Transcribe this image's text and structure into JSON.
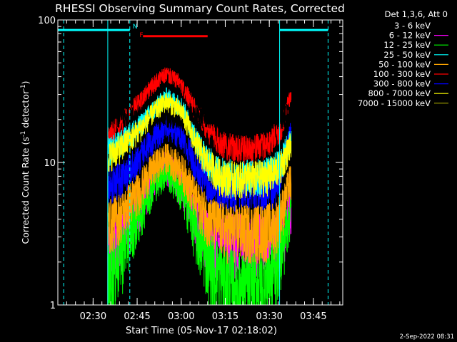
{
  "chart_data": {
    "type": "line",
    "title": "RHESSI Observing Summary Count Rates, Corrected",
    "xlabel": "Start Time (05-Nov-17 02:18:02)",
    "ylabel_main": "Corrected Count Rate (s",
    "ylabel_sup1": "-1",
    "ylabel_mid": " detector",
    "ylabel_sup2": "-1",
    "ylabel_end": ")",
    "yscale": "log",
    "ylim": [
      1,
      100
    ],
    "x_unit": "minutes after 02:18:02",
    "xlim": [
      0,
      97
    ],
    "y_tick_labels": [
      "1",
      "10",
      "100"
    ],
    "y_ticks": [
      1,
      10,
      100
    ],
    "x_ticks": [
      {
        "label": "02:30",
        "min": 12
      },
      {
        "label": "02:45",
        "min": 27
      },
      {
        "label": "03:00",
        "min": 42
      },
      {
        "label": "03:15",
        "min": 57
      },
      {
        "label": "03:30",
        "min": 72
      },
      {
        "label": "03:45",
        "min": 87
      }
    ],
    "data_start_min": 17,
    "data_end_min": 79.5,
    "legend_title": "Det 1,3,6, Att 0",
    "legend_placement": "right",
    "series": [
      {
        "name": "3 - 6 keV",
        "color": "#000000",
        "x": [
          17,
          25,
          32,
          38,
          45,
          52,
          60,
          66,
          72,
          77,
          79
        ],
        "values": [
          21,
          21,
          21,
          21,
          21,
          21,
          21,
          21,
          21,
          21,
          23
        ]
      },
      {
        "name": "6 - 12 keV",
        "color": "#ff00ff",
        "x": [
          17,
          22,
          28,
          33,
          37,
          42,
          47,
          52,
          58,
          64,
          70,
          74,
          77,
          79
        ],
        "values": [
          2.3,
          3.3,
          5,
          8,
          9.5,
          7,
          4,
          3,
          3,
          3,
          3,
          3,
          3.5,
          4.5
        ]
      },
      {
        "name": "12 - 25 keV",
        "color": "#00ff00",
        "x": [
          17,
          22,
          28,
          33,
          37,
          42,
          47,
          52,
          58,
          64,
          70,
          74,
          77,
          79
        ],
        "values": [
          1.5,
          2.5,
          4.5,
          7.5,
          9,
          6.5,
          3.3,
          2,
          1.5,
          1.3,
          1.5,
          2,
          3,
          4.5
        ]
      },
      {
        "name": "25 - 50 keV",
        "color": "#00ffff",
        "x": [
          17,
          22,
          28,
          33,
          37,
          42,
          46,
          50,
          55,
          60,
          66,
          72,
          76,
          79
        ],
        "values": [
          12,
          14,
          18,
          24,
          29,
          25,
          16,
          11,
          8.5,
          8,
          8,
          8.5,
          10,
          14
        ]
      },
      {
        "name": "50 - 100 keV",
        "color": "#ffa500",
        "x": [
          17,
          22,
          28,
          33,
          37,
          42,
          47,
          52,
          58,
          64,
          70,
          74,
          77,
          79
        ],
        "values": [
          3.8,
          4.5,
          6.5,
          9.5,
          11,
          9,
          5.5,
          4,
          3.5,
          3.5,
          3.5,
          3.7,
          5,
          7.5
        ]
      },
      {
        "name": "100 - 300 keV",
        "color": "#ff0000",
        "x": [
          17,
          22,
          28,
          33,
          37,
          41,
          46,
          51,
          56,
          61,
          66,
          71,
          76,
          79
        ],
        "values": [
          15,
          19,
          27,
          36,
          42,
          37,
          25,
          17,
          13.5,
          12.5,
          12.5,
          13.5,
          17,
          28
        ]
      },
      {
        "name": "300 - 800 keV",
        "color": "#0000ff",
        "x": [
          17,
          22,
          28,
          33,
          37,
          42,
          47,
          52,
          58,
          64,
          70,
          74,
          77,
          79
        ],
        "values": [
          7,
          8,
          11,
          15,
          18,
          15,
          9.5,
          7,
          6.5,
          6.5,
          6.5,
          7,
          10,
          16
        ]
      },
      {
        "name": "800 - 7000 keV",
        "color": "#ffff00",
        "x": [
          17,
          22,
          28,
          33,
          37,
          42,
          46,
          50,
          55,
          60,
          66,
          72,
          76,
          79
        ],
        "values": [
          11,
          13,
          17,
          23,
          27,
          23,
          15,
          10.5,
          8.2,
          7.8,
          7.8,
          8.2,
          9.5,
          13
        ]
      },
      {
        "name": "7000 - 15000 keV",
        "color": "#a0a000",
        "x": [],
        "values": []
      }
    ],
    "attenuator_lines": {
      "color": "#00ffff",
      "solid_times_min": [
        17,
        75.5
      ],
      "dashed_times_min": [
        2,
        24.5,
        92
      ]
    },
    "top_segments": [
      {
        "kind": "night",
        "color": "#00ffff",
        "from_min": 0,
        "to_min": 24.5,
        "at": 85
      },
      {
        "kind": "night",
        "color": "#00ffff",
        "from_min": 75.5,
        "to_min": 92,
        "at": 85
      },
      {
        "kind": "flare",
        "color": "#ff0000",
        "from_min": 29,
        "to_min": 51,
        "at": 77
      }
    ],
    "top_markers": [
      {
        "text": "N",
        "color": "#00ffff",
        "at_min": 25.5,
        "at": 87
      },
      {
        "text": "F",
        "color": "#ff0000",
        "at_min": 27.8,
        "at": 76
      }
    ]
  },
  "footer": {
    "timestamp": "2-Sep-2022 08:31"
  }
}
